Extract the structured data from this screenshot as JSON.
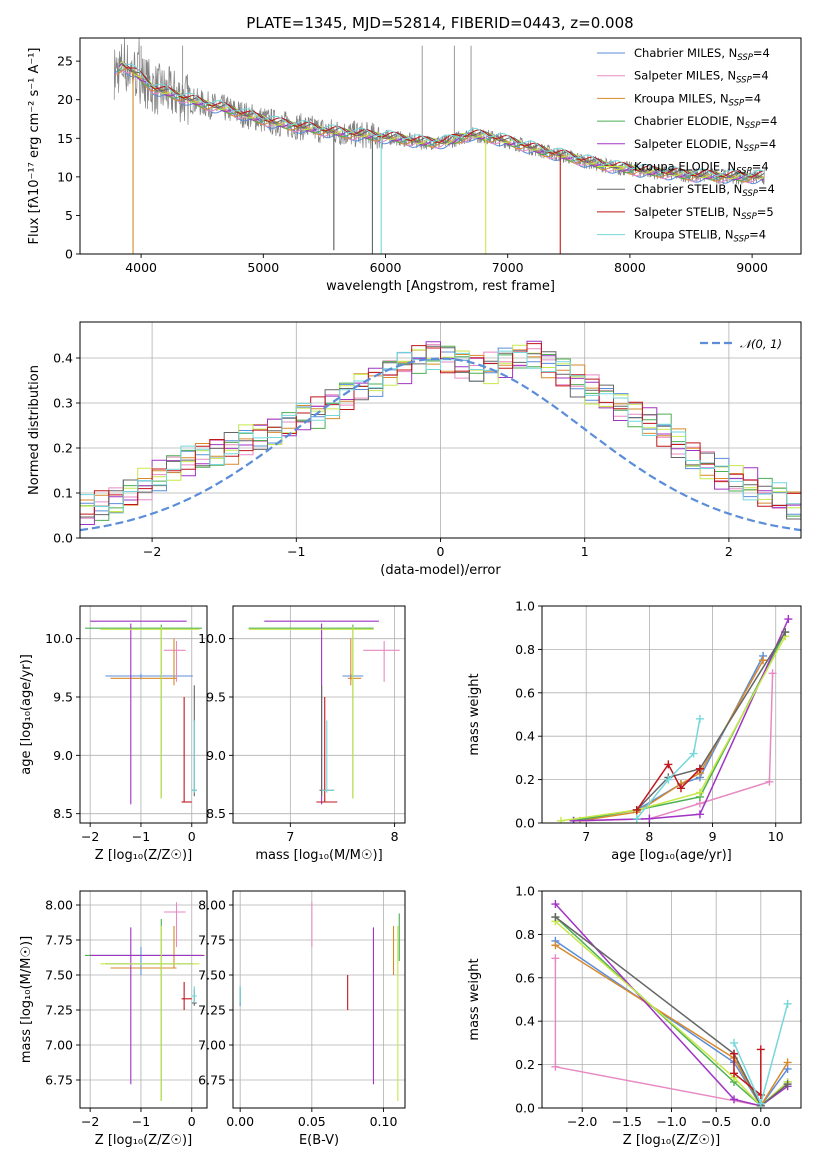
{
  "figure": {
    "title": "PLATE=1345, MJD=52814, FIBERID=0443, z=0.008"
  },
  "series": [
    {
      "name": "Chabrier MILES",
      "nssp": "4",
      "color": "#5b8dd9"
    },
    {
      "name": "Salpeter MILES",
      "nssp": "4",
      "color": "#e78ac3"
    },
    {
      "name": "Kroupa MILES",
      "nssp": "4",
      "color": "#d78a2c"
    },
    {
      "name": "Chabrier ELODIE",
      "nssp": "4",
      "color": "#4caf50"
    },
    {
      "name": "Salpeter ELODIE",
      "nssp": "4",
      "color": "#a034c4"
    },
    {
      "name": "Kroupa ELODIE",
      "nssp": "4",
      "color": "#c6e84a"
    },
    {
      "name": "Chabrier STELIB",
      "nssp": "4",
      "color": "#666666"
    },
    {
      "name": "Salpeter STELIB",
      "nssp": "5",
      "color": "#c0161b"
    },
    {
      "name": "Kroupa STELIB",
      "nssp": "4",
      "color": "#76d7da"
    }
  ],
  "chart_data": [
    {
      "id": "spectrum",
      "type": "line",
      "xlabel": "wavelength [Angstrom, rest frame]",
      "ylabel": "Flux [fλ10⁻¹⁷ erg cm⁻² s⁻¹ A⁻¹]",
      "xlim": [
        3500,
        9400
      ],
      "ylim": [
        0,
        28
      ],
      "xticks": [
        4000,
        5000,
        6000,
        7000,
        8000,
        9000
      ],
      "yticks": [
        0,
        5,
        10,
        15,
        20,
        25
      ],
      "grid": false,
      "legend_position": "top-right",
      "data_color": "#808080",
      "continuum": {
        "x": [
          3780,
          3850,
          3950,
          4100,
          4300,
          4500,
          4700,
          4900,
          5100,
          5300,
          5500,
          5700,
          5900,
          6100,
          6300,
          6500,
          6700,
          6900,
          7100,
          7300,
          7500,
          7700,
          7900,
          8100,
          8300,
          8500,
          8700,
          8900,
          9100
        ],
        "y": [
          23.5,
          24.5,
          23.5,
          21.5,
          20.5,
          19.5,
          18.8,
          17.8,
          17.0,
          16.5,
          16.0,
          15.6,
          15.3,
          15.0,
          14.5,
          14.5,
          15.5,
          15.0,
          14.2,
          13.3,
          12.6,
          11.8,
          11.2,
          10.8,
          10.5,
          10.2,
          10.1,
          10.0,
          10.0
        ]
      },
      "dips": [
        {
          "x": 3934,
          "y": 0,
          "series": 2
        },
        {
          "x": 5577,
          "y": 0.5,
          "series": 6
        },
        {
          "x": 5893,
          "y": 0,
          "series": 6
        },
        {
          "x": 5965,
          "y": 0,
          "series": 8
        },
        {
          "x": 6820,
          "y": 0,
          "series": 5
        },
        {
          "x": 7430,
          "y": 0,
          "series": 7
        }
      ]
    },
    {
      "id": "residuals",
      "type": "bar",
      "xlabel": "(data-model)/error",
      "ylabel": "Normed distribution",
      "xlim": [
        -2.5,
        2.5
      ],
      "ylim": [
        0,
        0.48
      ],
      "xticks": [
        -2,
        -1,
        0,
        1,
        2
      ],
      "yticks": [
        0.0,
        0.1,
        0.2,
        0.3,
        0.4
      ],
      "grid": true,
      "legend_position": "top-right",
      "bin_width": 0.1,
      "base_values": [
        0.05,
        0.05,
        0.04,
        0.05,
        0.05,
        0.06,
        0.07,
        0.08,
        0.1,
        0.12,
        0.14,
        0.16,
        0.17,
        0.18,
        0.19,
        0.2,
        0.22,
        0.23,
        0.24,
        0.25,
        0.27,
        0.28,
        0.3,
        0.32,
        0.34,
        0.35,
        0.37,
        0.38,
        0.4,
        0.41,
        0.4,
        0.39,
        0.38,
        0.38,
        0.39,
        0.4,
        0.41,
        0.39,
        0.37,
        0.35,
        0.33,
        0.31,
        0.29,
        0.28,
        0.26,
        0.24,
        0.21,
        0.18,
        0.16,
        0.14,
        0.13,
        0.12,
        0.1,
        0.09,
        0.07,
        0.06,
        0.05,
        0.05,
        0.04,
        0.03
      ]
    },
    {
      "id": "age-vs-z",
      "type": "scatter",
      "xlabel": "Z [log₁₀(Z/Z☉)]",
      "ylabel": "age  [log₁₀(age/yr)]",
      "xlim": [
        -2.2,
        0.3
      ],
      "ylim": [
        8.42,
        10.28
      ],
      "xticks": [
        -2,
        -1,
        0
      ],
      "yticks": [
        8.5,
        9.0,
        9.5,
        10.0
      ],
      "grid": true,
      "points": [
        {
          "s": 0,
          "x": -1.0,
          "y": 9.68,
          "xe": [
            -1.7,
            0.02
          ],
          "ye": [
            9.65,
            9.7
          ]
        },
        {
          "s": 1,
          "x": -0.3,
          "y": 9.9,
          "xe": [
            -0.55,
            -0.12
          ],
          "ye": [
            9.63,
            9.98
          ]
        },
        {
          "s": 2,
          "x": -0.35,
          "y": 9.66,
          "xe": [
            -1.6,
            -0.3
          ],
          "ye": [
            9.6,
            10.0
          ]
        },
        {
          "s": 3,
          "x": -0.6,
          "y": 10.09,
          "xe": [
            -2.1,
            0.2
          ],
          "ye": [
            8.63,
            10.12
          ]
        },
        {
          "s": 4,
          "x": -1.2,
          "y": 10.15,
          "xe": [
            -2.0,
            -0.1
          ],
          "ye": [
            8.58,
            10.13
          ]
        },
        {
          "s": 5,
          "x": -0.6,
          "y": 10.08,
          "xe": [
            -1.8,
            0.15
          ],
          "ye": [
            8.63,
            10.1
          ]
        },
        {
          "s": 6,
          "x": 0.05,
          "y": 8.7,
          "xe": [
            0.0,
            0.1
          ],
          "ye": [
            8.65,
            9.6
          ]
        },
        {
          "s": 7,
          "x": -0.15,
          "y": 8.6,
          "xe": [
            -0.2,
            0.0
          ],
          "ye": [
            8.6,
            9.5
          ]
        },
        {
          "s": 8,
          "x": 0.05,
          "y": 8.7,
          "xe": [
            0.0,
            0.1
          ],
          "ye": [
            8.68,
            9.3
          ]
        }
      ]
    },
    {
      "id": "age-vs-mass",
      "type": "scatter",
      "xlabel": "mass [log₁₀(M/M☉)]",
      "ylabel": "",
      "xlim": [
        6.45,
        8.1
      ],
      "ylim": [
        8.42,
        10.28
      ],
      "xticks": [
        7,
        8
      ],
      "yticks": [
        8.5,
        9.0,
        9.5,
        10.0
      ],
      "grid": true,
      "points": [
        {
          "s": 0,
          "x": 7.58,
          "y": 9.68,
          "xe": [
            7.5,
            7.7
          ],
          "ye": [
            9.65,
            9.7
          ]
        },
        {
          "s": 1,
          "x": 7.9,
          "y": 9.9,
          "xe": [
            7.7,
            8.05
          ],
          "ye": [
            9.63,
            9.98
          ]
        },
        {
          "s": 2,
          "x": 7.58,
          "y": 9.66,
          "xe": [
            7.55,
            7.68
          ],
          "ye": [
            9.6,
            10.0
          ]
        },
        {
          "s": 3,
          "x": 7.6,
          "y": 10.09,
          "xe": [
            6.6,
            7.8
          ],
          "ye": [
            8.63,
            10.12
          ]
        },
        {
          "s": 4,
          "x": 7.3,
          "y": 10.15,
          "xe": [
            6.75,
            7.85
          ],
          "ye": [
            8.58,
            10.13
          ]
        },
        {
          "s": 5,
          "x": 7.6,
          "y": 10.08,
          "xe": [
            6.6,
            7.8
          ],
          "ye": [
            8.63,
            10.1
          ]
        },
        {
          "s": 6,
          "x": 7.3,
          "y": 8.7,
          "xe": [
            7.28,
            7.42
          ],
          "ye": [
            8.65,
            9.6
          ]
        },
        {
          "s": 7,
          "x": 7.33,
          "y": 8.6,
          "xe": [
            7.25,
            7.45
          ],
          "ye": [
            8.6,
            9.5
          ]
        },
        {
          "s": 8,
          "x": 7.35,
          "y": 8.7,
          "xe": [
            7.3,
            7.42
          ],
          "ye": [
            8.68,
            9.3
          ]
        }
      ]
    },
    {
      "id": "weight-vs-age",
      "type": "line",
      "xlabel": "age  [log₁₀(age/yr)]",
      "ylabel": "mass weight",
      "xlim": [
        6.3,
        10.4
      ],
      "ylim": [
        0,
        1.0
      ],
      "xticks": [
        7,
        8,
        9,
        10
      ],
      "yticks": [
        0.0,
        0.2,
        0.4,
        0.6,
        0.8,
        1.0
      ],
      "grid": true,
      "series_points": [
        {
          "s": 0,
          "x": [
            6.8,
            7.8,
            8.5,
            8.8,
            9.8
          ],
          "y": [
            0.01,
            0.06,
            0.18,
            0.21,
            0.77
          ]
        },
        {
          "s": 1,
          "x": [
            7.0,
            8.0,
            8.8,
            9.9,
            9.95
          ],
          "y": [
            0.01,
            0.02,
            0.09,
            0.19,
            0.69
          ]
        },
        {
          "s": 2,
          "x": [
            6.9,
            7.8,
            8.5,
            8.8,
            9.8
          ],
          "y": [
            0.01,
            0.05,
            0.18,
            0.23,
            0.75
          ]
        },
        {
          "s": 3,
          "x": [
            6.8,
            7.8,
            8.8,
            10.15
          ],
          "y": [
            0.01,
            0.06,
            0.12,
            0.88
          ]
        },
        {
          "s": 4,
          "x": [
            6.8,
            8.0,
            8.8,
            10.2
          ],
          "y": [
            0.01,
            0.02,
            0.04,
            0.94
          ]
        },
        {
          "s": 5,
          "x": [
            6.6,
            7.8,
            8.8,
            10.15
          ],
          "y": [
            0.01,
            0.06,
            0.14,
            0.86
          ]
        },
        {
          "s": 6,
          "x": [
            7.8,
            8.3,
            8.8,
            10.15
          ],
          "y": [
            0.06,
            0.21,
            0.25,
            0.88
          ]
        },
        {
          "s": 7,
          "x": [
            7.8,
            8.3,
            8.5,
            8.8
          ],
          "y": [
            0.06,
            0.27,
            0.16,
            0.25
          ]
        },
        {
          "s": 8,
          "x": [
            7.8,
            8.3,
            8.7,
            8.8
          ],
          "y": [
            0.02,
            0.2,
            0.32,
            0.48
          ]
        }
      ]
    },
    {
      "id": "mass-vs-z",
      "type": "scatter",
      "xlabel": "Z [log₁₀(Z/Z☉)]",
      "ylabel": "mass [log₁₀(M/M☉)]",
      "xlim": [
        -2.2,
        0.3
      ],
      "ylim": [
        6.55,
        8.1
      ],
      "xticks": [
        -2,
        -1,
        0
      ],
      "yticks": [
        6.75,
        7.0,
        7.25,
        7.5,
        7.75,
        8.0
      ],
      "grid": true,
      "points": [
        {
          "s": 0,
          "x": -1.0,
          "y": 7.58,
          "xe": [
            -1.7,
            0.02
          ],
          "ye": [
            7.5,
            7.7
          ]
        },
        {
          "s": 1,
          "x": -0.3,
          "y": 7.95,
          "xe": [
            -0.55,
            -0.12
          ],
          "ye": [
            7.7,
            8.02
          ]
        },
        {
          "s": 2,
          "x": -0.35,
          "y": 7.55,
          "xe": [
            -1.6,
            -0.3
          ],
          "ye": [
            7.55,
            7.85
          ]
        },
        {
          "s": 3,
          "x": -0.6,
          "y": 7.64,
          "xe": [
            -2.1,
            0.2
          ],
          "ye": [
            6.6,
            7.9
          ]
        },
        {
          "s": 4,
          "x": -1.2,
          "y": 7.64,
          "xe": [
            -2.0,
            0.25
          ],
          "ye": [
            6.72,
            7.84
          ]
        },
        {
          "s": 5,
          "x": -0.6,
          "y": 7.58,
          "xe": [
            -1.8,
            0.15
          ],
          "ye": [
            6.6,
            7.85
          ]
        },
        {
          "s": 6,
          "x": 0.05,
          "y": 7.3,
          "xe": [
            0.0,
            0.1
          ],
          "ye": [
            7.28,
            7.4
          ]
        },
        {
          "s": 7,
          "x": -0.15,
          "y": 7.33,
          "xe": [
            -0.2,
            0.0
          ],
          "ye": [
            7.25,
            7.45
          ]
        },
        {
          "s": 8,
          "x": 0.05,
          "y": 7.35,
          "xe": [
            0.0,
            0.1
          ],
          "ye": [
            7.3,
            7.42
          ]
        }
      ]
    },
    {
      "id": "mass-vs-ebv",
      "type": "scatter",
      "xlabel": "E(B-V)",
      "ylabel": "",
      "xlim": [
        -0.005,
        0.115
      ],
      "ylim": [
        6.55,
        8.1
      ],
      "xticks": [
        0.0,
        0.05,
        0.1
      ],
      "yticks": [
        6.75,
        7.0,
        7.25,
        7.5,
        7.75,
        8.0
      ],
      "grid": true,
      "points": [
        {
          "s": 0,
          "x": 0.0,
          "y": 7.35,
          "xe": [
            0.0,
            0.0
          ],
          "ye": [
            7.28,
            7.42
          ]
        },
        {
          "s": 1,
          "x": 0.05,
          "y": 7.9,
          "xe": [
            0.05,
            0.05
          ],
          "ye": [
            7.7,
            8.02
          ]
        },
        {
          "s": 2,
          "x": 0.107,
          "y": 7.7,
          "xe": [
            0.107,
            0.107
          ],
          "ye": [
            7.5,
            7.85
          ]
        },
        {
          "s": 3,
          "x": 0.111,
          "y": 7.8,
          "xe": [
            0.111,
            0.111
          ],
          "ye": [
            7.6,
            7.94
          ]
        },
        {
          "s": 4,
          "x": 0.093,
          "y": 7.3,
          "xe": [
            0.093,
            0.093
          ],
          "ye": [
            6.72,
            7.84
          ]
        },
        {
          "s": 5,
          "x": 0.11,
          "y": 7.2,
          "xe": [
            0.11,
            0.11
          ],
          "ye": [
            6.6,
            7.85
          ]
        },
        {
          "s": 6,
          "x": 0.0,
          "y": 7.35,
          "xe": [
            0.0,
            0.0
          ],
          "ye": [
            7.3,
            7.4
          ]
        },
        {
          "s": 7,
          "x": 0.075,
          "y": 7.38,
          "xe": [
            0.075,
            0.075
          ],
          "ye": [
            7.25,
            7.5
          ]
        },
        {
          "s": 8,
          "x": 0.0,
          "y": 7.36,
          "xe": [
            0.0,
            0.0
          ],
          "ye": [
            7.3,
            7.42
          ]
        }
      ]
    },
    {
      "id": "weight-vs-z",
      "type": "line",
      "xlabel": "Z [log₁₀(Z/Z☉)]",
      "ylabel": "mass weight",
      "xlim": [
        -2.45,
        0.45
      ],
      "ylim": [
        0,
        1.0
      ],
      "xticks": [
        -2.0,
        -1.5,
        -1.0,
        -0.5,
        0.0
      ],
      "yticks": [
        0.0,
        0.2,
        0.4,
        0.6,
        0.8,
        1.0
      ],
      "grid": true,
      "series_points": [
        {
          "s": 0,
          "x": [
            -2.3,
            -0.3,
            0.0,
            0.3
          ],
          "y": [
            0.77,
            0.21,
            0.01,
            0.18
          ]
        },
        {
          "s": 1,
          "x": [
            -2.3,
            -2.3,
            0.0
          ],
          "y": [
            0.69,
            0.19,
            0.01
          ]
        },
        {
          "s": 2,
          "x": [
            -2.3,
            -0.3,
            0.0,
            0.3
          ],
          "y": [
            0.75,
            0.23,
            0.01,
            0.21
          ]
        },
        {
          "s": 3,
          "x": [
            -2.3,
            -0.3,
            0.0,
            0.3
          ],
          "y": [
            0.88,
            0.12,
            0.01,
            0.12
          ]
        },
        {
          "s": 4,
          "x": [
            -2.3,
            -0.3,
            0.0,
            0.3
          ],
          "y": [
            0.94,
            0.04,
            0.01,
            0.1
          ]
        },
        {
          "s": 5,
          "x": [
            -2.3,
            -0.3,
            0.0,
            0.3
          ],
          "y": [
            0.86,
            0.14,
            0.01,
            0.12
          ]
        },
        {
          "s": 6,
          "x": [
            -2.3,
            -0.3,
            0.0,
            0.3
          ],
          "y": [
            0.88,
            0.25,
            0.01,
            0.11
          ]
        },
        {
          "s": 7,
          "x": [
            -0.3,
            -0.3,
            0.0,
            0.0
          ],
          "y": [
            0.25,
            0.16,
            0.06,
            0.27
          ]
        },
        {
          "s": 8,
          "x": [
            -0.3,
            0.0,
            0.3
          ],
          "y": [
            0.3,
            0.02,
            0.48
          ]
        }
      ]
    }
  ],
  "gaussian_label": "𝒩(0, 1)",
  "gaussian_color": "#5b8dd9"
}
